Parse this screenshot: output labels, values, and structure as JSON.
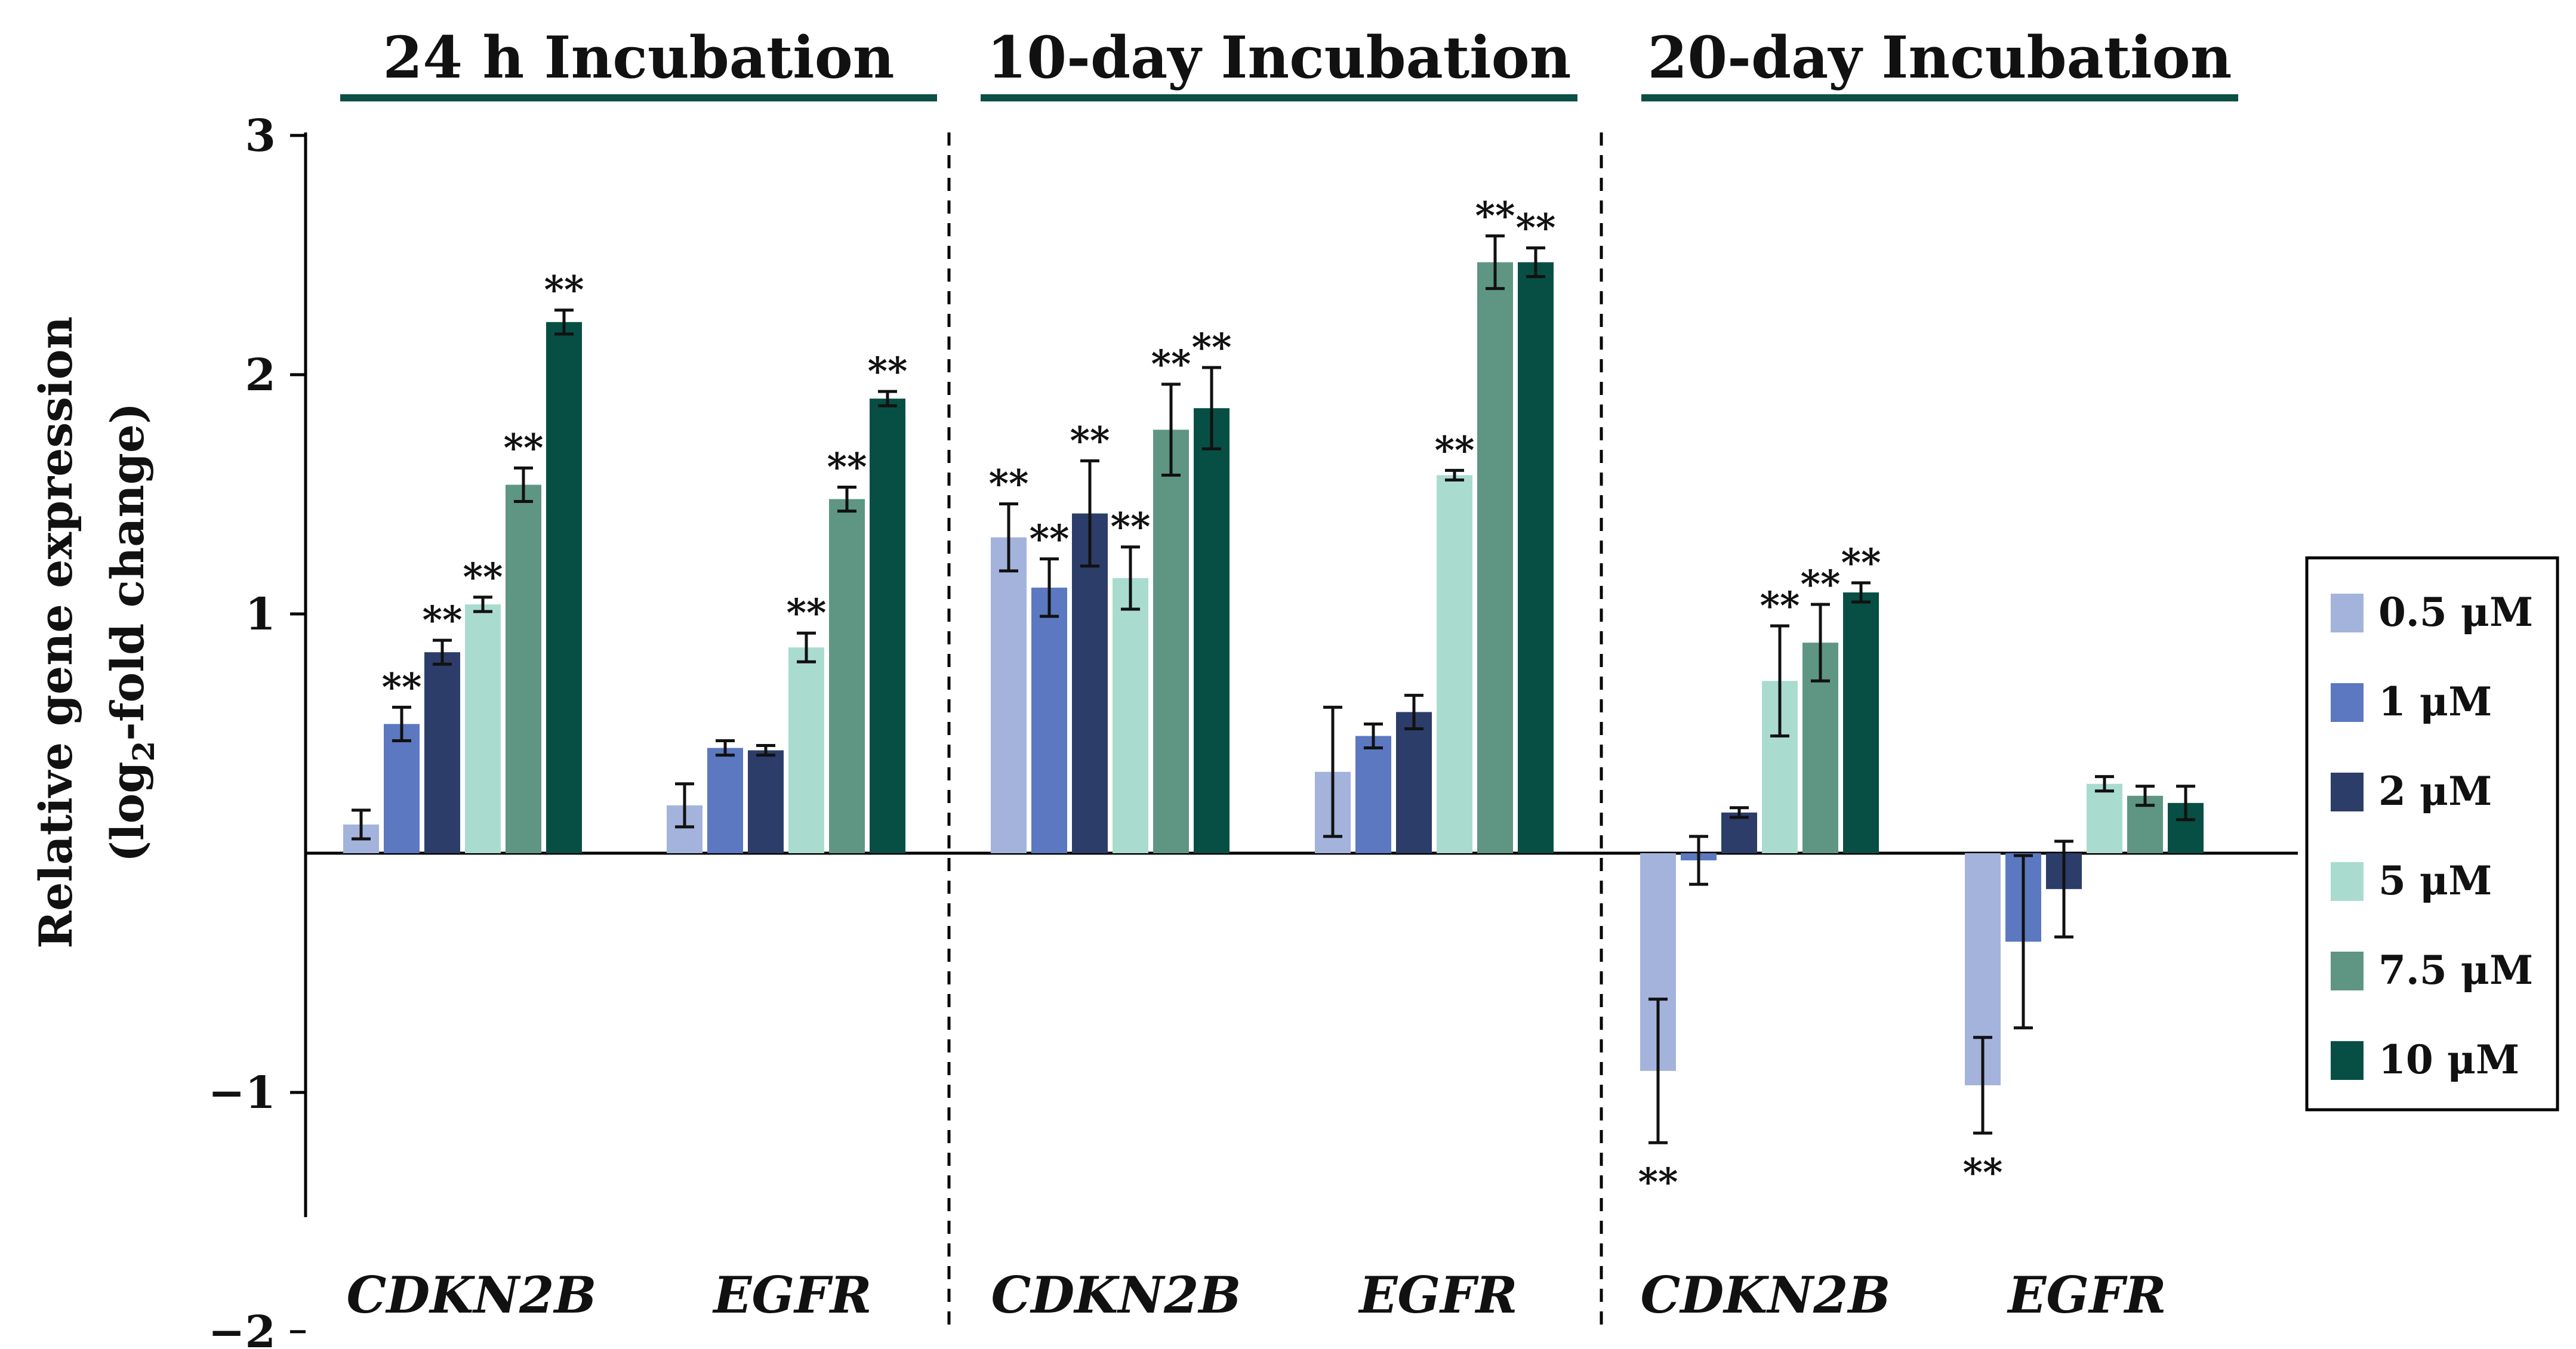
{
  "chart_data": {
    "type": "bar",
    "title": "",
    "ylabel_line1": "Relative gene expression",
    "ylabel_line2_pre": "(log",
    "ylabel_line2_sub": "2",
    "ylabel_line2_post": "-fold change)",
    "xlabel": "",
    "ylim": [
      -2,
      3.5
    ],
    "yticks": [
      -2,
      -1,
      1,
      2,
      3
    ],
    "ytick_labels": [
      "−2",
      "−1",
      "1",
      "2",
      "3"
    ],
    "legend_position": "right",
    "colors": [
      "#a3b3dc",
      "#5b78c0",
      "#2d3d6a",
      "#a9dccf",
      "#5e9683",
      "#074f44"
    ],
    "series_names": [
      "0.5 μM",
      "1 μM",
      "2 μM",
      "5 μM",
      "7.5 μM",
      "10 μM"
    ],
    "groups": [
      {
        "title": "24 h Incubation",
        "genes": [
          {
            "name": "CDKN2B",
            "values": [
              0.12,
              0.54,
              0.84,
              1.04,
              1.54,
              2.22
            ],
            "errors": [
              0.06,
              0.07,
              0.05,
              0.03,
              0.07,
              0.05
            ],
            "sig": [
              "",
              "**",
              "**",
              "**",
              "**",
              "**"
            ]
          },
          {
            "name": "EGFR",
            "values": [
              0.2,
              0.44,
              0.43,
              0.86,
              1.48,
              1.9
            ],
            "errors": [
              0.09,
              0.03,
              0.02,
              0.06,
              0.05,
              0.03
            ],
            "sig": [
              "",
              "",
              "",
              "**",
              "**",
              "**"
            ]
          }
        ]
      },
      {
        "title": "10-day Incubation",
        "genes": [
          {
            "name": "CDKN2B",
            "values": [
              1.32,
              1.11,
              1.42,
              1.15,
              1.77,
              1.86
            ],
            "errors": [
              0.14,
              0.12,
              0.22,
              0.13,
              0.19,
              0.17
            ],
            "sig": [
              "**",
              "**",
              "**",
              "**",
              "**",
              "**"
            ]
          },
          {
            "name": "EGFR",
            "values": [
              0.34,
              0.49,
              0.59,
              1.58,
              2.47,
              2.47
            ],
            "errors": [
              0.27,
              0.05,
              0.07,
              0.02,
              0.11,
              0.06
            ],
            "sig": [
              "",
              "",
              "",
              "**",
              "**",
              "**"
            ]
          }
        ]
      },
      {
        "title": "20-day Incubation",
        "genes": [
          {
            "name": "CDKN2B",
            "values": [
              -0.91,
              -0.03,
              0.17,
              0.72,
              0.88,
              1.09
            ],
            "errors": [
              0.3,
              0.1,
              0.02,
              0.23,
              0.16,
              0.04
            ],
            "sig": [
              "**",
              "",
              "",
              "**",
              "**",
              "**"
            ]
          },
          {
            "name": "EGFR",
            "values": [
              -0.97,
              -0.37,
              -0.15,
              0.29,
              0.24,
              0.21
            ],
            "errors": [
              0.2,
              0.36,
              0.2,
              0.03,
              0.04,
              0.07
            ],
            "sig": [
              "**",
              "",
              "",
              "",
              "",
              ""
            ]
          }
        ]
      }
    ]
  }
}
